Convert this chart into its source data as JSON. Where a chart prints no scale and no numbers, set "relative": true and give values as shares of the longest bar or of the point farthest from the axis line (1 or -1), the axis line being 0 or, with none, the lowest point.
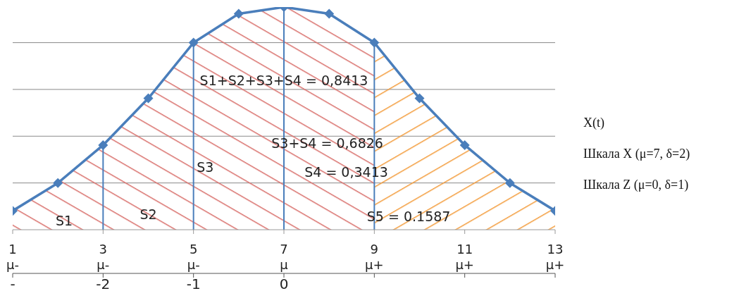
{
  "chart_data": {
    "type": "line",
    "relative": true,
    "grid": "y",
    "legend": "right",
    "xlabel": "Шкала X (μ=7, δ=2)",
    "x2label": "Шкала Z (μ=0, δ=1)",
    "x": [
      1,
      2,
      3,
      4,
      5,
      6,
      7,
      8,
      9,
      10,
      11,
      12,
      13
    ],
    "xlim": [
      1,
      13
    ],
    "xticks": [
      {
        "value": 1,
        "label": "1\nμ-"
      },
      {
        "value": 3,
        "label": "3\nμ-"
      },
      {
        "value": 5,
        "label": "5\nμ-"
      },
      {
        "value": 7,
        "label": "7\nμ"
      },
      {
        "value": 9,
        "label": "9\nμ+"
      },
      {
        "value": 11,
        "label": "11\nμ+"
      },
      {
        "value": 13,
        "label": "13\nμ+"
      }
    ],
    "x2lim": [
      -3,
      3
    ],
    "x2ticks": [
      {
        "value": -3,
        "label": "-"
      },
      -2,
      -1,
      0,
      {
        "value": 1,
        "label": null
      },
      {
        "value": 2,
        "label": null
      },
      {
        "value": 3,
        "label": null
      }
    ],
    "series": [
      {
        "type": "area",
        "color": "#d9706c",
        "values": [
          0.085,
          0.21,
          0.38,
          0.59,
          0.84,
          0.97,
          1,
          0.97,
          0.84,
          null,
          null,
          null,
          null
        ]
      },
      {
        "type": "area",
        "color": "#f39c3c",
        "values": [
          null,
          null,
          null,
          null,
          null,
          null,
          null,
          null,
          0.84,
          0.59,
          0.38,
          0.21,
          0.085
        ]
      },
      {
        "name": "X(t)",
        "color": "#4a7ebb",
        "marker": "diamond",
        "values": [
          0.085,
          0.21,
          0.38,
          0.59,
          0.84,
          0.97,
          1,
          0.97,
          0.84,
          0.59,
          0.38,
          0.21,
          0.085
        ]
      }
    ],
    "ref_lines": [
      {
        "axis": "x",
        "value": 3,
        "color": "#4a7ebb"
      },
      {
        "axis": "x",
        "value": 5,
        "color": "#4a7ebb"
      },
      {
        "axis": "x",
        "value": 7,
        "color": "#4a7ebb"
      },
      {
        "axis": "x",
        "value": 9,
        "color": "#4a7ebb"
      }
    ],
    "annotations": [
      "S1",
      "S2",
      "S3",
      "S4 = 0,3413",
      "S3+S4 = 0,6826",
      "S1+S2+S3+S4 = 0,8413",
      "S5 = 0.1587"
    ]
  }
}
